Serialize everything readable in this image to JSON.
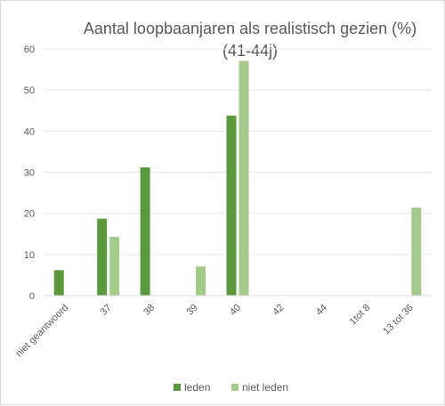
{
  "chart_data": {
    "type": "bar",
    "title_lines": [
      "Aantal loopbaanjaren als realistisch gezien (%)",
      "(41-44j)"
    ],
    "categories": [
      "niet geantwoord",
      "37",
      "38",
      "39",
      "40",
      "42",
      "44",
      "1tot 8",
      "13 tot 36"
    ],
    "series": [
      {
        "name": "leden",
        "color": "#5b9a3c",
        "values": [
          6.2,
          18.7,
          31.2,
          null,
          43.8,
          null,
          null,
          null,
          null
        ]
      },
      {
        "name": "niet leden",
        "color": "#a3cb8a",
        "values": [
          null,
          14.3,
          null,
          7.1,
          57.1,
          null,
          null,
          null,
          21.4
        ]
      }
    ],
    "ylim": [
      0,
      60
    ],
    "yticks": [
      0,
      10,
      20,
      30,
      40,
      50,
      60
    ],
    "grid": true,
    "legend": "bottom"
  }
}
